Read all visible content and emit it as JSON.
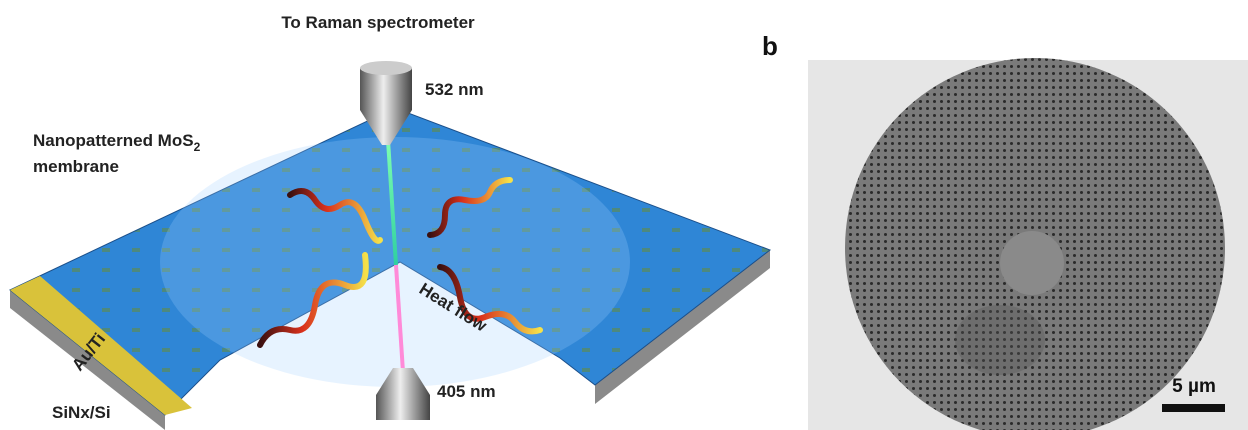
{
  "figure": {
    "panel_a": {
      "top_label": "To Raman spectrometer",
      "laser_top": "532 nm",
      "laser_bottom": "405 nm",
      "membrane_label": {
        "text": "Nanopatterned MoS",
        "subscript": "2",
        "line2": "membrane"
      },
      "heat_label": "Heat flow",
      "electrode_label": "Au/Ti",
      "substrate_label": "SiNx/Si"
    },
    "panel_b": {
      "panel_letter": "b",
      "scale_bar": "5 µm"
    }
  }
}
